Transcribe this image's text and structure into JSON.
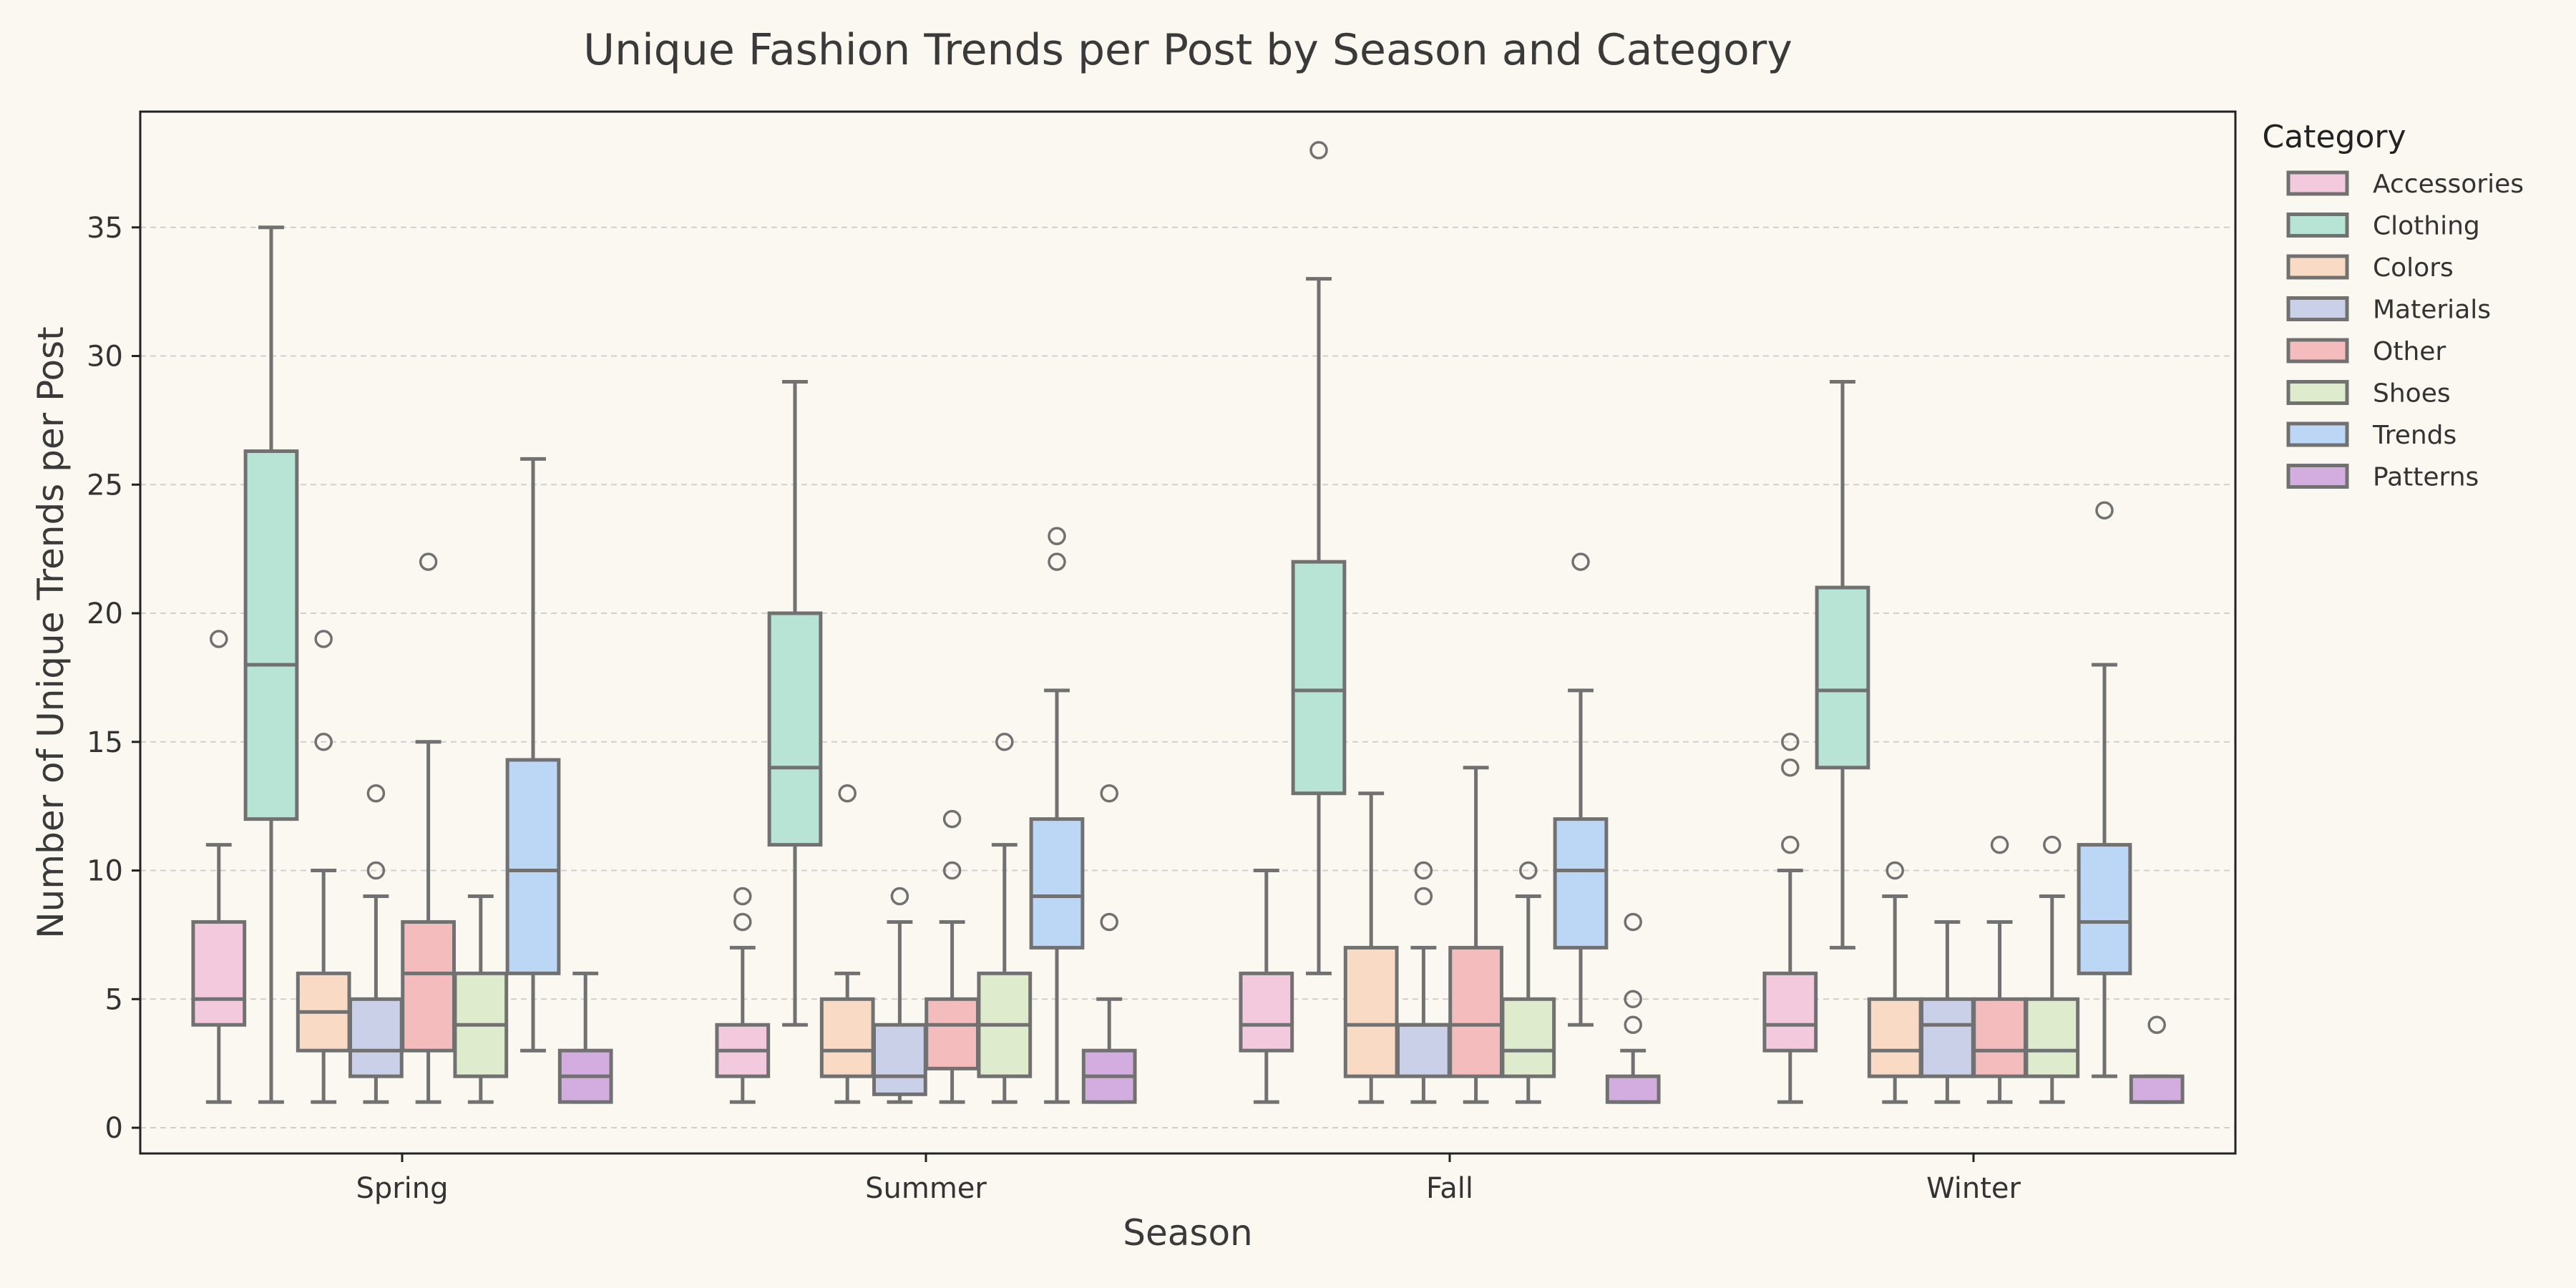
{
  "chart_data": {
    "type": "box",
    "title": "Unique Fashion Trends per Post by Season and Category",
    "xlabel": "Season",
    "ylabel": "Number of Unique Trends per Post",
    "categories": [
      "Spring",
      "Summer",
      "Fall",
      "Winter"
    ],
    "ylim": [
      -1,
      39.5
    ],
    "yticks": [
      0,
      5,
      10,
      15,
      20,
      25,
      30,
      35
    ],
    "grid": "horizontal dashed",
    "legend": {
      "title": "Category",
      "placement": "outside-right-top",
      "entries": [
        "Accessories",
        "Clothing",
        "Colors",
        "Materials",
        "Other",
        "Shoes",
        "Trends",
        "Patterns"
      ]
    },
    "colors": {
      "Accessories": "#f2c9dd",
      "Clothing": "#b8e4d6",
      "Colors": "#f8dac5",
      "Materials": "#c9d0e8",
      "Other": "#f4bcbc",
      "Shoes": "#dfebcd",
      "Trends": "#bcd6f6",
      "Patterns": "#d3addf",
      "line": "#717171",
      "background": "#fbf8f1"
    },
    "series": [
      {
        "name": "Accessories",
        "boxes": [
          {
            "whislo": 1,
            "q1": 4,
            "med": 5,
            "q3": 8,
            "whishi": 11,
            "fliers": [
              19
            ]
          },
          {
            "whislo": 1,
            "q1": 2,
            "med": 3,
            "q3": 4,
            "whishi": 7,
            "fliers": [
              8,
              9
            ]
          },
          {
            "whislo": 1,
            "q1": 3,
            "med": 4,
            "q3": 6,
            "whishi": 10,
            "fliers": []
          },
          {
            "whislo": 1,
            "q1": 3,
            "med": 4,
            "q3": 6,
            "whishi": 10,
            "fliers": [
              11,
              14,
              15
            ]
          }
        ]
      },
      {
        "name": "Clothing",
        "boxes": [
          {
            "whislo": 1,
            "q1": 12,
            "med": 18,
            "q3": 26.3,
            "whishi": 35,
            "fliers": []
          },
          {
            "whislo": 4,
            "q1": 11,
            "med": 14,
            "q3": 20,
            "whishi": 29,
            "fliers": []
          },
          {
            "whislo": 6,
            "q1": 13,
            "med": 17,
            "q3": 22,
            "whishi": 33,
            "fliers": [
              38
            ]
          },
          {
            "whislo": 7,
            "q1": 14,
            "med": 17,
            "q3": 21,
            "whishi": 29,
            "fliers": []
          }
        ]
      },
      {
        "name": "Colors",
        "boxes": [
          {
            "whislo": 1,
            "q1": 3,
            "med": 4.5,
            "q3": 6,
            "whishi": 10,
            "fliers": [
              15,
              19
            ]
          },
          {
            "whislo": 1,
            "q1": 2,
            "med": 3,
            "q3": 5,
            "whishi": 6,
            "fliers": [
              13
            ]
          },
          {
            "whislo": 1,
            "q1": 2,
            "med": 4,
            "q3": 7,
            "whishi": 13,
            "fliers": []
          },
          {
            "whislo": 1,
            "q1": 2,
            "med": 3,
            "q3": 5,
            "whishi": 9,
            "fliers": [
              10
            ]
          }
        ]
      },
      {
        "name": "Materials",
        "boxes": [
          {
            "whislo": 1,
            "q1": 2,
            "med": 3,
            "q3": 5,
            "whishi": 9,
            "fliers": [
              10,
              13
            ]
          },
          {
            "whislo": 1,
            "q1": 1.3,
            "med": 2,
            "q3": 4,
            "whishi": 8,
            "fliers": [
              9
            ]
          },
          {
            "whislo": 1,
            "q1": 2,
            "med": 4,
            "q3": 4,
            "whishi": 7,
            "fliers": [
              9,
              10
            ]
          },
          {
            "whislo": 1,
            "q1": 2,
            "med": 4,
            "q3": 5,
            "whishi": 8,
            "fliers": []
          }
        ]
      },
      {
        "name": "Other",
        "boxes": [
          {
            "whislo": 1,
            "q1": 3,
            "med": 6,
            "q3": 8,
            "whishi": 15,
            "fliers": [
              22
            ]
          },
          {
            "whislo": 1,
            "q1": 2.3,
            "med": 4,
            "q3": 5,
            "whishi": 8,
            "fliers": [
              10,
              12
            ]
          },
          {
            "whislo": 1,
            "q1": 2,
            "med": 4,
            "q3": 7,
            "whishi": 14,
            "fliers": []
          },
          {
            "whislo": 1,
            "q1": 2,
            "med": 3,
            "q3": 5,
            "whishi": 8,
            "fliers": [
              11
            ]
          }
        ]
      },
      {
        "name": "Shoes",
        "boxes": [
          {
            "whislo": 1,
            "q1": 2,
            "med": 4,
            "q3": 6,
            "whishi": 9,
            "fliers": []
          },
          {
            "whislo": 1,
            "q1": 2,
            "med": 4,
            "q3": 6,
            "whishi": 11,
            "fliers": [
              15
            ]
          },
          {
            "whislo": 1,
            "q1": 2,
            "med": 3,
            "q3": 5,
            "whishi": 9,
            "fliers": [
              10
            ]
          },
          {
            "whislo": 1,
            "q1": 2,
            "med": 3,
            "q3": 5,
            "whishi": 9,
            "fliers": [
              11
            ]
          }
        ]
      },
      {
        "name": "Trends",
        "boxes": [
          {
            "whislo": 3,
            "q1": 6,
            "med": 10,
            "q3": 14.3,
            "whishi": 26,
            "fliers": []
          },
          {
            "whislo": 1,
            "q1": 7,
            "med": 9,
            "q3": 12,
            "whishi": 17,
            "fliers": [
              22,
              23
            ]
          },
          {
            "whislo": 4,
            "q1": 7,
            "med": 10,
            "q3": 12,
            "whishi": 17,
            "fliers": [
              22
            ]
          },
          {
            "whislo": 2,
            "q1": 6,
            "med": 8,
            "q3": 11,
            "whishi": 18,
            "fliers": [
              24
            ]
          }
        ]
      },
      {
        "name": "Patterns",
        "boxes": [
          {
            "whislo": 1,
            "q1": 1,
            "med": 2,
            "q3": 3,
            "whishi": 6,
            "fliers": []
          },
          {
            "whislo": 1,
            "q1": 1,
            "med": 2,
            "q3": 3,
            "whishi": 5,
            "fliers": [
              8,
              13
            ]
          },
          {
            "whislo": 1,
            "q1": 1,
            "med": 1,
            "q3": 2,
            "whishi": 3,
            "fliers": [
              4,
              5,
              8
            ]
          },
          {
            "whislo": 1,
            "q1": 1,
            "med": 1,
            "q3": 2,
            "whishi": 2,
            "fliers": [
              4
            ]
          }
        ]
      }
    ]
  }
}
